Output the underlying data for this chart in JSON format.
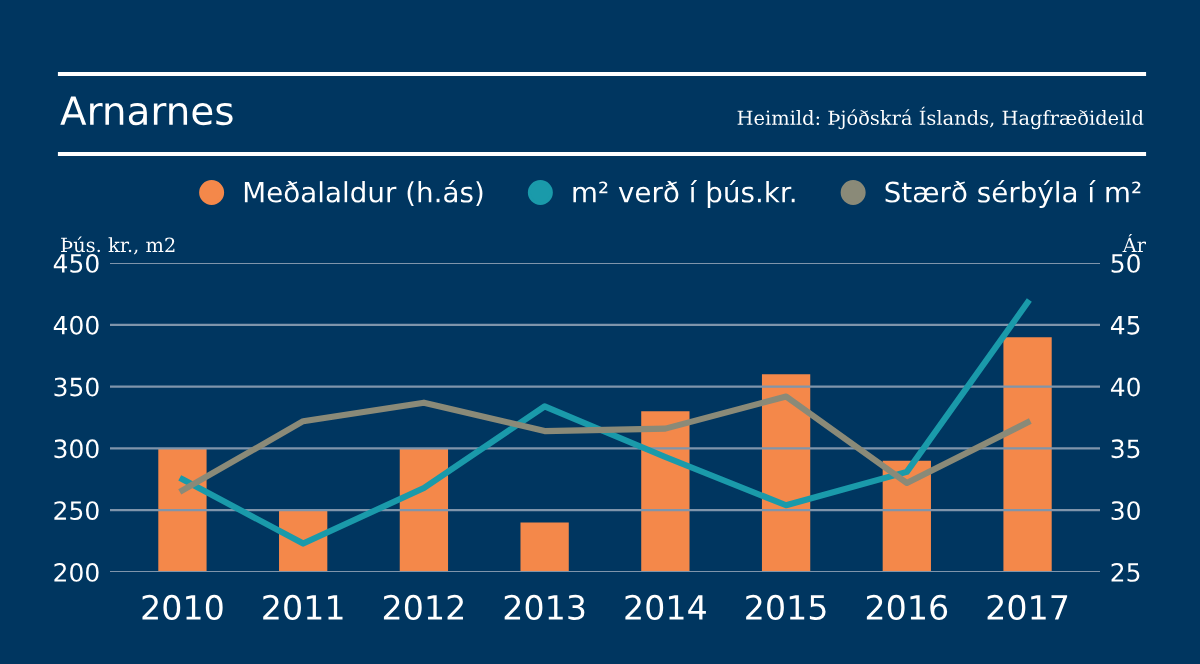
{
  "chart_data": {
    "type": "bar",
    "title": "Arnarnes",
    "annotations": [
      "Heimild: Þjóðskrá Íslands, Hagfræðideild"
    ],
    "ylabel": "Þús. kr., m2",
    "y2label": "Ár",
    "categories": [
      "2010",
      "2011",
      "2012",
      "2013",
      "2014",
      "2015",
      "2016",
      "2017"
    ],
    "series": [
      {
        "name": "Meðalaldur (h.ás)",
        "axis": "y2",
        "color": "#f4884a",
        "values": [
          35,
          30,
          35,
          29,
          38,
          41,
          34,
          44
        ]
      },
      {
        "name": "m² verð í þús.kr.",
        "type": "line",
        "color": "#1a9aaa",
        "values": [
          275,
          223,
          268,
          334,
          293,
          254,
          281,
          418
        ]
      },
      {
        "name": "Stærð sérbýla í m²",
        "type": "line",
        "color": "#8a8a78",
        "values": [
          266,
          322,
          337,
          314,
          316,
          342,
          272,
          321
        ]
      }
    ],
    "ylim": [
      200,
      450
    ],
    "yticks": [
      200,
      250,
      300,
      350,
      400,
      450
    ],
    "y2lim": [
      25,
      50
    ],
    "y2ticks": [
      25,
      30,
      35,
      40,
      45,
      50
    ],
    "grid": "y",
    "legend": "top right",
    "marker": "none",
    "line_style": "solid"
  }
}
